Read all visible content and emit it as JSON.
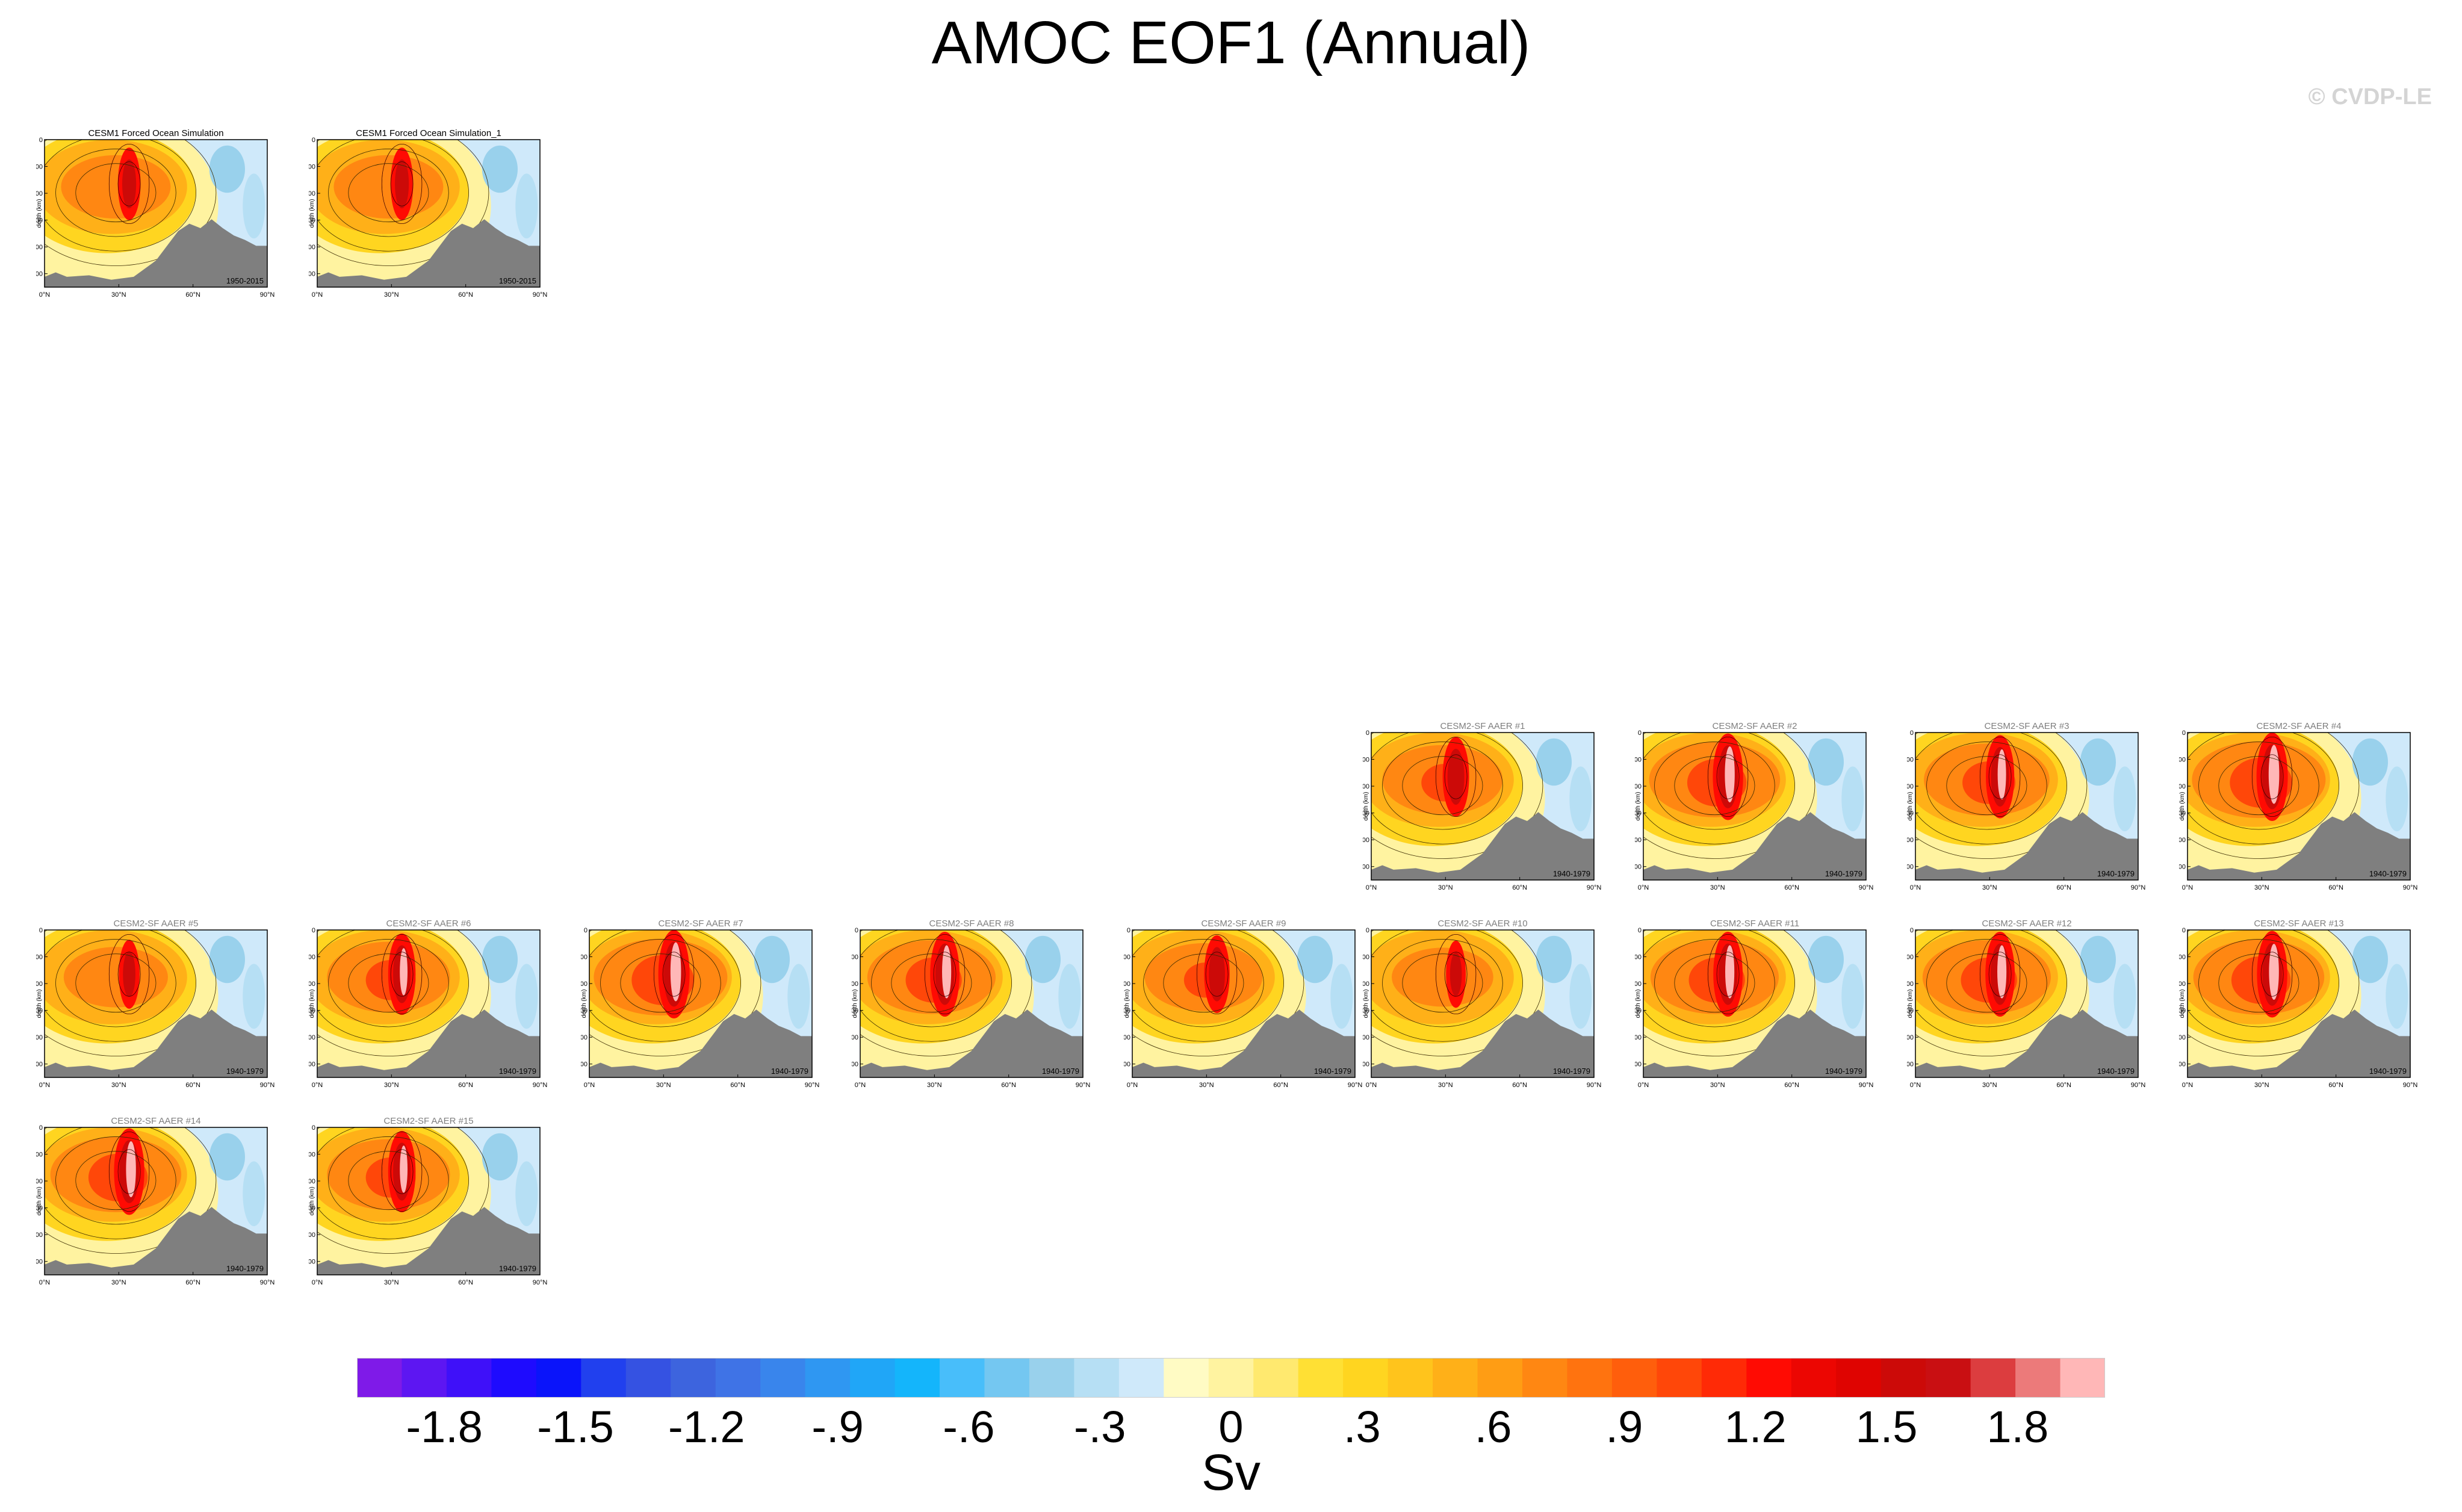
{
  "header": {
    "title": "AMOC EOF1 (Annual)",
    "watermark": "© CVDP-LE"
  },
  "colors": {
    "land": "#7f7f7f",
    "palette": [
      "#7f1ae8",
      "#5d16f2",
      "#3f10f9",
      "#1e0bfe",
      "#0a14fa",
      "#2140ee",
      "#3552e2",
      "#3d64de",
      "#3f73e6",
      "#3985ec",
      "#2f97f2",
      "#20a6f7",
      "#14b5fb",
      "#48befa",
      "#74c7f1",
      "#99d1ec",
      "#b6dff4",
      "#cfe9fa",
      "#fffbc4",
      "#fff3a0",
      "#ffe96f",
      "#ffe034",
      "#ffd520",
      "#ffc41c",
      "#ffb018",
      "#ff9d14",
      "#ff8712",
      "#ff730f",
      "#ff5e0c",
      "#ff4709",
      "#ff2a06",
      "#ff0b03",
      "#ec0602",
      "#df0401",
      "#cc0a08",
      "#c90f12",
      "#dc3d3f",
      "#ec7a7a",
      "#ffb7b7"
    ]
  },
  "colorbar": {
    "unit": "Sv",
    "tick_labels": [
      "-1.8",
      "-1.5",
      "-1.2",
      "-.9",
      "-.6",
      "-.3",
      "0",
      ".3",
      ".6",
      ".9",
      "1.2",
      "1.5",
      "1.8"
    ]
  },
  "panels": [
    {
      "title": "CESM1 Forced Ocean Simulation",
      "period": "1950-2015",
      "title_color": "#000000",
      "strength": 0.55
    },
    {
      "title": "CESM1 Forced Ocean Simulation_1",
      "period": "1950-2015",
      "title_color": "#000000",
      "strength": 0.55
    },
    {
      "title": "CESM2-SF AAER #1",
      "period": "1940-1979",
      "title_color": "#7f7f7f",
      "strength": 0.75
    },
    {
      "title": "CESM2-SF AAER #2",
      "period": "1940-1979",
      "title_color": "#7f7f7f",
      "strength": 0.95
    },
    {
      "title": "CESM2-SF AAER #3",
      "period": "1940-1979",
      "title_color": "#7f7f7f",
      "strength": 0.85
    },
    {
      "title": "CESM2-SF AAER #4",
      "period": "1940-1979",
      "title_color": "#7f7f7f",
      "strength": 1.0
    },
    {
      "title": "CESM2-SF AAER #5",
      "period": "1940-1979",
      "title_color": "#7f7f7f",
      "strength": 0.45
    },
    {
      "title": "CESM2-SF AAER #6",
      "period": "1940-1979",
      "title_color": "#7f7f7f",
      "strength": 0.8
    },
    {
      "title": "CESM2-SF AAER #7",
      "period": "1940-1979",
      "title_color": "#7f7f7f",
      "strength": 1.0
    },
    {
      "title": "CESM2-SF AAER #8",
      "period": "1940-1979",
      "title_color": "#7f7f7f",
      "strength": 0.9
    },
    {
      "title": "CESM2-SF AAER #9",
      "period": "1940-1979",
      "title_color": "#7f7f7f",
      "strength": 0.7
    },
    {
      "title": "CESM2-SF AAER #10",
      "period": "1940-1979",
      "title_color": "#7f7f7f",
      "strength": 0.4
    },
    {
      "title": "CESM2-SF AAER #11",
      "period": "1940-1979",
      "title_color": "#7f7f7f",
      "strength": 0.9
    },
    {
      "title": "CESM2-SF AAER #12",
      "period": "1940-1979",
      "title_color": "#7f7f7f",
      "strength": 0.9
    },
    {
      "title": "CESM2-SF AAER #13",
      "period": "1940-1979",
      "title_color": "#7f7f7f",
      "strength": 0.95
    },
    {
      "title": "CESM2-SF AAER #14",
      "period": "1940-1979",
      "title_color": "#7f7f7f",
      "strength": 0.95
    },
    {
      "title": "CESM2-SF AAER #15",
      "period": "1940-1979",
      "title_color": "#7f7f7f",
      "strength": 0.8
    }
  ],
  "chart_data": {
    "type": "heatmap",
    "title": "AMOC EOF1 (Annual)",
    "xlabel": "",
    "ylabel": "depth (km)",
    "x_tick_labels": [
      "0°N",
      "30°N",
      "60°N",
      "90°N"
    ],
    "y_tick_labels": [
      "0",
      "1000",
      "2000",
      "3000",
      "4000",
      "5000"
    ],
    "xlim": [
      0,
      90
    ],
    "ylim": [
      5500,
      0
    ],
    "colorbar_range": [
      -2.0,
      2.0
    ],
    "colorbar_unit": "Sv",
    "n_panels": 17
  }
}
